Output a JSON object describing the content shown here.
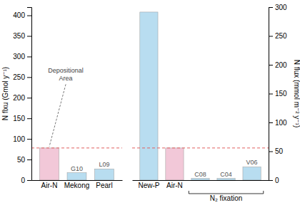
{
  "chart_data": [
    {
      "type": "bar",
      "categories": [
        "Air-N",
        "Mekong",
        "Pearl"
      ],
      "values": [
        78,
        18,
        27
      ],
      "colors": [
        "#f2c8d8",
        "#b8ddf0",
        "#b8ddf0"
      ],
      "bar_labels": [
        null,
        "G10",
        "L09"
      ],
      "ylim": [
        0,
        420
      ],
      "yticks": [
        0,
        50,
        100,
        150,
        200,
        250,
        300,
        350,
        400
      ],
      "ylabel": "N flxu (Gmol y⁻¹)",
      "reference_line": {
        "value": 78,
        "color": "#e06060"
      },
      "annotations": [
        {
          "text": "Depositional\nArea",
          "category": 0
        }
      ]
    },
    {
      "type": "bar",
      "categories": [
        "New-P",
        "Air-N",
        null,
        null,
        null
      ],
      "values": [
        408,
        78,
        4,
        4,
        32
      ],
      "colors": [
        "#b8ddf0",
        "#f2c8d8",
        "#b8ddf0",
        "#b8ddf0",
        "#b8ddf0"
      ],
      "bar_labels": [
        null,
        null,
        "C08",
        "C04",
        "V06"
      ],
      "ylim": [
        0,
        420
      ],
      "y2lim": [
        0,
        300
      ],
      "y2ticks": [
        0,
        50,
        100,
        150,
        200,
        250,
        300
      ],
      "y2label": "N flux (mmol m⁻² y⁻¹)",
      "reference_line": {
        "value": 78,
        "color": "#e06060"
      },
      "annotations": [
        {
          "text": "N₂ fixation",
          "categories": [
            2,
            3,
            4
          ]
        }
      ]
    }
  ]
}
